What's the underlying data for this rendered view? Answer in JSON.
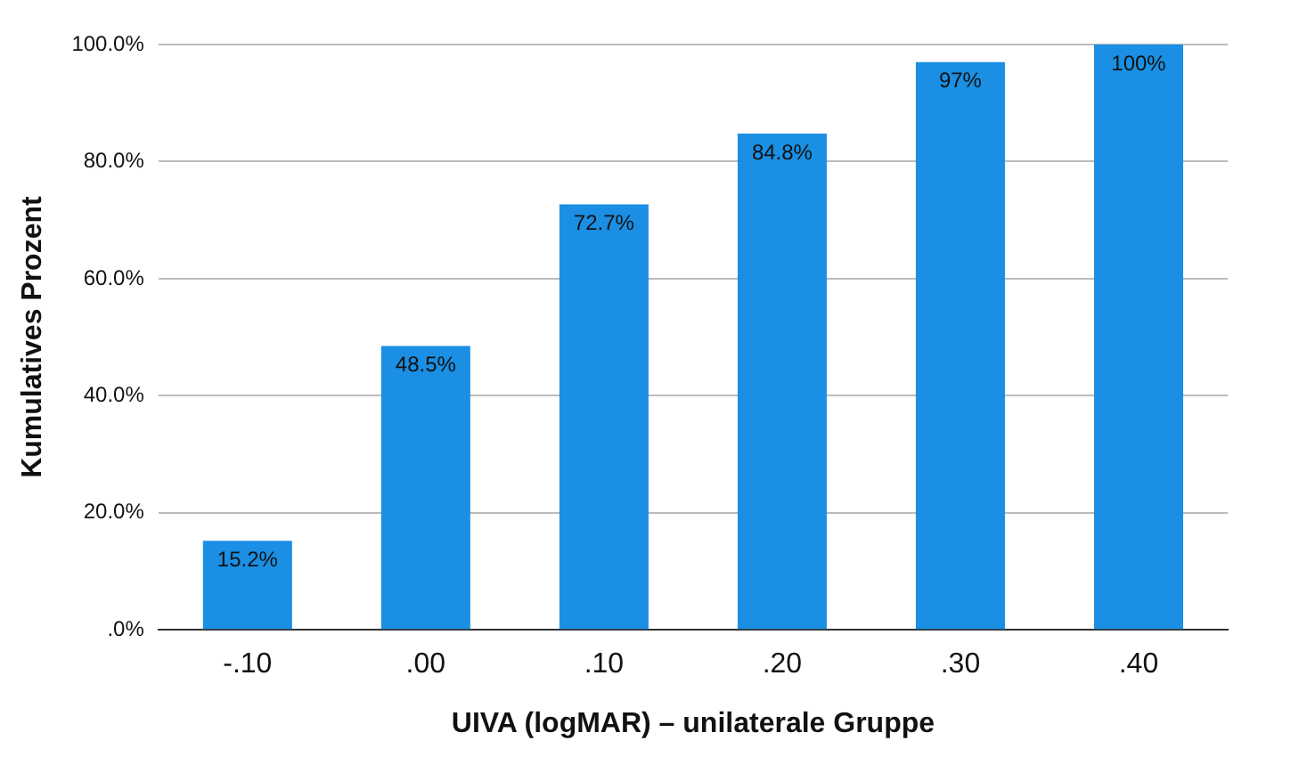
{
  "chart_data": {
    "type": "bar",
    "xlabel": "UIVA (logMAR) – unilaterale Gruppe",
    "ylabel": "Kumulatives Prozent",
    "categories": [
      "-.10",
      ".00",
      ".10",
      ".20",
      ".30",
      ".40"
    ],
    "values": [
      15.2,
      48.5,
      72.7,
      84.8,
      97,
      100
    ],
    "value_labels": [
      "15.2%",
      "48.5%",
      "72.7%",
      "84.8%",
      "97%",
      "100%"
    ],
    "color": "#1a8fe3",
    "ylim": [
      0,
      100
    ],
    "yticks": [
      {
        "value": 0,
        "label": ".0%"
      },
      {
        "value": 20,
        "label": "20.0%"
      },
      {
        "value": 40,
        "label": "40.0%"
      },
      {
        "value": 60,
        "label": "60.0%"
      },
      {
        "value": 80,
        "label": "80.0%"
      },
      {
        "value": 100,
        "label": "100.0%"
      }
    ],
    "grid": "y"
  }
}
